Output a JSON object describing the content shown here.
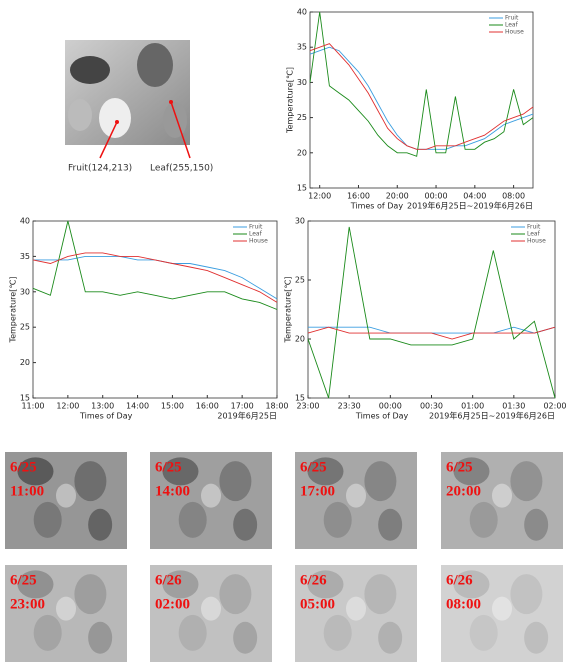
{
  "chart_data": [
    {
      "type": "line",
      "x_label": "Times of Day",
      "y_label": "Temperature[℃]",
      "note": "2019年6月25日~2019年6月26日",
      "x": [
        11,
        12,
        13,
        14,
        15,
        16,
        17,
        18,
        19,
        20,
        21,
        22,
        23,
        24,
        25,
        26,
        27,
        28,
        29,
        30,
        31,
        32,
        33,
        34
      ],
      "xlim": [
        11,
        34
      ],
      "xticks": [
        {
          "value": 12,
          "label": "12:00"
        },
        {
          "value": 16,
          "label": "16:00"
        },
        {
          "value": 20,
          "label": "20:00"
        },
        {
          "value": 24,
          "label": "00:00"
        },
        {
          "value": 28,
          "label": "04:00"
        },
        {
          "value": 32,
          "label": "08:00"
        }
      ],
      "ylim": [
        15,
        40
      ],
      "yticks": [
        15,
        20,
        25,
        30,
        35,
        40
      ],
      "legend": "upper right",
      "series": [
        {
          "name": "Fruit",
          "color": "#3b9ee0",
          "values": [
            34,
            34.5,
            35,
            34.5,
            33,
            31.5,
            29.5,
            27,
            24.5,
            22.5,
            21,
            20.5,
            20.5,
            20.5,
            20.5,
            21,
            21,
            21.5,
            22,
            23,
            24,
            24.5,
            25,
            25.5
          ]
        },
        {
          "name": "Leaf",
          "color": "#1a8a1a",
          "values": [
            30,
            40,
            29.5,
            28.5,
            27.5,
            26,
            24.5,
            22.5,
            21,
            20,
            20,
            19.5,
            29,
            20,
            20,
            28,
            20.5,
            20.5,
            21.5,
            22,
            23,
            29,
            24,
            25
          ]
        },
        {
          "name": "House",
          "color": "#e03030",
          "values": [
            34.5,
            35,
            35.5,
            34,
            32.5,
            30.5,
            28.5,
            26,
            23.5,
            22,
            21,
            20.5,
            20.5,
            21,
            21,
            21,
            21.5,
            22,
            22.5,
            23.5,
            24.5,
            25,
            25.5,
            26.5
          ]
        }
      ]
    },
    {
      "type": "line",
      "x_label": "Times of Day",
      "y_label": "Temperature[℃]",
      "note": "2019年6月25日",
      "x": [
        11,
        11.5,
        12,
        12.5,
        13,
        13.5,
        14,
        14.5,
        15,
        15.5,
        16,
        16.5,
        17,
        17.5,
        18
      ],
      "xlim": [
        11,
        18
      ],
      "xticks": [
        {
          "value": 11,
          "label": "11:00"
        },
        {
          "value": 12,
          "label": "12:00"
        },
        {
          "value": 13,
          "label": "13:00"
        },
        {
          "value": 14,
          "label": "14:00"
        },
        {
          "value": 15,
          "label": "15:00"
        },
        {
          "value": 16,
          "label": "16:00"
        },
        {
          "value": 17,
          "label": "17:00"
        },
        {
          "value": 18,
          "label": "18:00"
        }
      ],
      "ylim": [
        15,
        40
      ],
      "yticks": [
        15,
        20,
        25,
        30,
        35,
        40
      ],
      "legend": "upper right",
      "series": [
        {
          "name": "Fruit",
          "color": "#3b9ee0",
          "values": [
            34.5,
            34.5,
            34.5,
            35,
            35,
            35,
            34.5,
            34.5,
            34,
            34,
            33.5,
            33,
            32,
            30.5,
            29
          ]
        },
        {
          "name": "Leaf",
          "color": "#1a8a1a",
          "values": [
            30.5,
            29.5,
            40,
            30,
            30,
            29.5,
            30,
            29.5,
            29,
            29.5,
            30,
            30,
            29,
            28.5,
            27.5
          ]
        },
        {
          "name": "House",
          "color": "#e03030",
          "values": [
            34.5,
            34,
            35,
            35.5,
            35.5,
            35,
            35,
            34.5,
            34,
            33.5,
            33,
            32,
            31,
            30,
            28.5
          ]
        }
      ]
    },
    {
      "type": "line",
      "x_label": "Times of Day",
      "y_label": "Temperature[℃]",
      "note": "2019年6月25日~2019年6月26日",
      "x": [
        23,
        23.25,
        23.5,
        23.75,
        24,
        24.25,
        24.5,
        24.75,
        25,
        25.25,
        25.5,
        25.75,
        26
      ],
      "xlim": [
        23,
        26
      ],
      "xticks": [
        {
          "value": 23,
          "label": "23:00"
        },
        {
          "value": 23.5,
          "label": "23:30"
        },
        {
          "value": 24,
          "label": "00:00"
        },
        {
          "value": 24.5,
          "label": "00:30"
        },
        {
          "value": 25,
          "label": "01:00"
        },
        {
          "value": 25.5,
          "label": "01:30"
        },
        {
          "value": 26,
          "label": "02:00"
        }
      ],
      "ylim": [
        15,
        30
      ],
      "yticks": [
        15,
        20,
        25,
        30
      ],
      "legend": "upper right",
      "series": [
        {
          "name": "Fruit",
          "color": "#3b9ee0",
          "values": [
            21,
            21,
            21,
            21,
            20.5,
            20.5,
            20.5,
            20.5,
            20.5,
            20.5,
            21,
            20.5,
            21
          ]
        },
        {
          "name": "Leaf",
          "color": "#1a8a1a",
          "values": [
            20,
            15,
            29.5,
            20,
            20,
            19.5,
            19.5,
            19.5,
            20,
            27.5,
            20,
            21.5,
            15
          ]
        },
        {
          "name": "House",
          "color": "#e03030",
          "values": [
            20.5,
            21,
            20.5,
            20.5,
            20.5,
            20.5,
            20.5,
            20,
            20.5,
            20.5,
            20.5,
            20.5,
            21
          ]
        }
      ]
    }
  ],
  "thermal_image": {
    "labels": [
      "Fruit(124,213)",
      "Leaf(255,150)"
    ]
  },
  "tiles": [
    {
      "date": "6/25",
      "time": "11:00"
    },
    {
      "date": "6/25",
      "time": "14:00"
    },
    {
      "date": "6/25",
      "time": "17:00"
    },
    {
      "date": "6/25",
      "time": "20:00"
    },
    {
      "date": "6/25",
      "time": "23:00"
    },
    {
      "date": "6/26",
      "time": "02:00"
    },
    {
      "date": "6/26",
      "time": "05:00"
    },
    {
      "date": "6/26",
      "time": "08:00"
    }
  ]
}
